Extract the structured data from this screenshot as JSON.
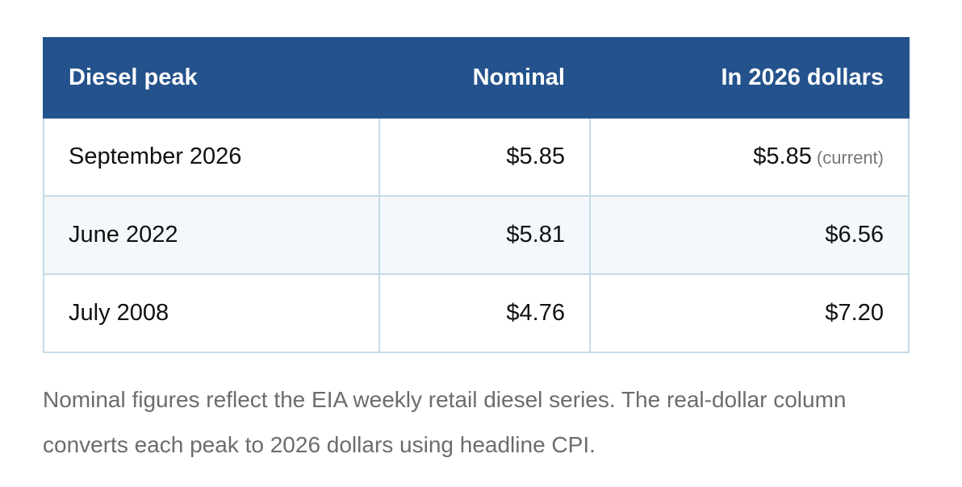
{
  "table": {
    "headers": [
      "Diesel peak",
      "Nominal",
      "In 2026 dollars"
    ],
    "rows": [
      {
        "period": "September 2026",
        "nominal": "$5.85",
        "real": "$5.85",
        "note": "(current)"
      },
      {
        "period": "June 2022",
        "nominal": "$5.81",
        "real": "$6.56"
      },
      {
        "period": "July 2008",
        "nominal": "$4.76",
        "real": "$7.20"
      }
    ]
  },
  "caption": "Nominal figures reflect the EIA weekly retail diesel series. The real-dollar column converts each peak to 2026 dollars using headline CPI.",
  "colors": {
    "header_bg": "#24528c",
    "header_text": "#ffffff",
    "row_tint": "#f3f8fc",
    "border": "#c7dbe6",
    "caption_text": "#6c6c6c"
  }
}
